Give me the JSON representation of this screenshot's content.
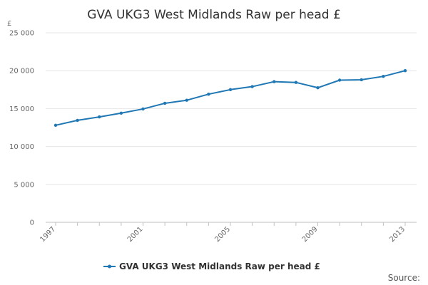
{
  "chart_data": {
    "type": "line",
    "title": "GVA UKG3 West Midlands Raw per head £",
    "ylabel": "£",
    "xlabel": "",
    "x": [
      1997,
      1998,
      1999,
      2000,
      2001,
      2002,
      2003,
      2004,
      2005,
      2006,
      2007,
      2008,
      2009,
      2010,
      2011,
      2012,
      2013
    ],
    "series": [
      {
        "name": "GVA UKG3 West Midlands Raw per head £",
        "color": "#1f77b4",
        "values": [
          12800,
          13450,
          13900,
          14400,
          14950,
          15700,
          16100,
          16900,
          17500,
          17900,
          18550,
          18450,
          17750,
          18750,
          18800,
          19250,
          20000
        ]
      }
    ],
    "ylim": [
      0,
      25000
    ],
    "yticks": [
      "0",
      "5 000",
      "10 000",
      "15 000",
      "20 000",
      "25 000"
    ],
    "ytick_values": [
      0,
      5000,
      10000,
      15000,
      20000,
      25000
    ],
    "xtick_labels": [
      "1997",
      "2001",
      "2005",
      "2009",
      "2013"
    ],
    "grid": true,
    "legend_position": "bottom-center",
    "source_label": "Source:"
  }
}
